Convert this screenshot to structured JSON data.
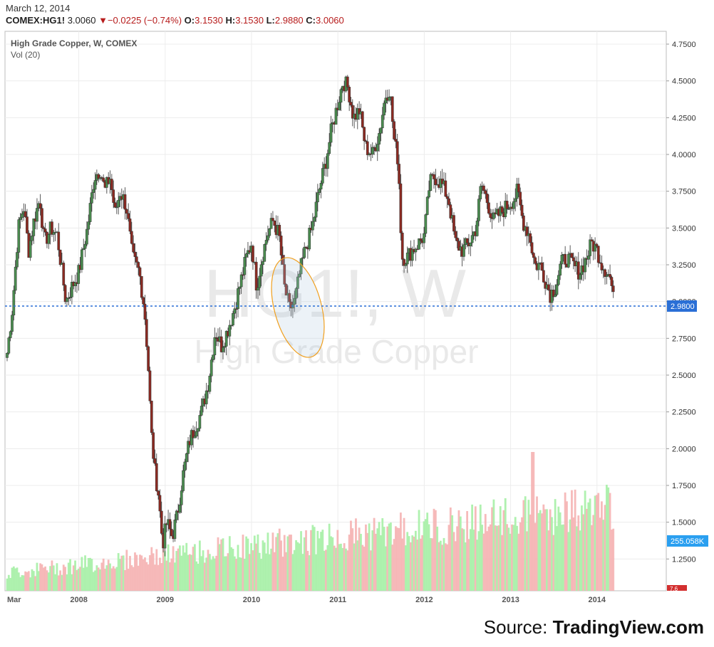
{
  "header": {
    "date": "March 12, 2014",
    "symbol": "COMEX:HG1!",
    "last": "3.0060",
    "change": "−0.0225 (−0.74%)",
    "open_label": "O:",
    "open": "3.1530",
    "high_label": "H:",
    "high": "3.1530",
    "low_label": "L:",
    "low": "2.9880",
    "close_label": "C:",
    "close": "3.0060",
    "down_arrow_icon": "triangle-down-icon"
  },
  "legend": {
    "series_title": "High Grade Copper, W, COMEX",
    "volume_title": "Vol (20)"
  },
  "watermark": {
    "symbol": "HG1!, W",
    "name": "High Grade Copper"
  },
  "markers": {
    "price_line_label": "2.9800",
    "price_line_value": 2.98,
    "volume_label": "255.058K",
    "last_volume_label": "7.6"
  },
  "source": {
    "prefix": "Source: ",
    "brand": "TradingView.com"
  },
  "colors": {
    "up": "#4a8c4f",
    "down": "#8c2a22",
    "vol_up": "#a6f0a6",
    "vol_down": "#f5b3b3",
    "price_line": "#2a6fd6",
    "volume_marker": "#2a9ff0",
    "ellipse": "#f0a020",
    "watermark": "#e7e7e7"
  },
  "chart_data": {
    "type": "candlestick",
    "title": "High Grade Copper, W, COMEX",
    "ylim": [
      1.1,
      4.85
    ],
    "yticks": [
      1.25,
      1.5,
      1.75,
      2.0,
      2.25,
      2.5,
      2.75,
      3.0,
      3.25,
      3.5,
      3.75,
      4.0,
      4.25,
      4.5,
      4.75
    ],
    "ytick_labels": [
      "1.2500",
      "1.5000",
      "1.7500",
      "2.0000",
      "2.2500",
      "2.5000",
      "2.7500",
      "3.0000",
      "3.2500",
      "3.5000",
      "3.7500",
      "4.0000",
      "4.2500",
      "4.5000",
      "4.7500"
    ],
    "x_labels": [
      "Mar",
      "2008",
      "2009",
      "2010",
      "2011",
      "2012",
      "2013",
      "2014"
    ],
    "x_label_dates": [
      2007.17,
      2008.0,
      2009.0,
      2010.0,
      2011.0,
      2012.0,
      2013.0,
      2014.0
    ],
    "x_range": [
      2007.17,
      2014.7
    ],
    "grid": true,
    "close_path": [
      {
        "date": 2007.17,
        "close": 2.65
      },
      {
        "date": 2007.23,
        "close": 2.95
      },
      {
        "date": 2007.3,
        "close": 3.5
      },
      {
        "date": 2007.36,
        "close": 3.65
      },
      {
        "date": 2007.42,
        "close": 3.35
      },
      {
        "date": 2007.48,
        "close": 3.55
      },
      {
        "date": 2007.55,
        "close": 3.7
      },
      {
        "date": 2007.6,
        "close": 3.4
      },
      {
        "date": 2007.68,
        "close": 3.5
      },
      {
        "date": 2007.75,
        "close": 3.45
      },
      {
        "date": 2007.85,
        "close": 3.0
      },
      {
        "date": 2007.92,
        "close": 3.1
      },
      {
        "date": 2008.0,
        "close": 3.2
      },
      {
        "date": 2008.1,
        "close": 3.5
      },
      {
        "date": 2008.18,
        "close": 3.85
      },
      {
        "date": 2008.25,
        "close": 3.9
      },
      {
        "date": 2008.3,
        "close": 3.75
      },
      {
        "date": 2008.36,
        "close": 3.85
      },
      {
        "date": 2008.42,
        "close": 3.6
      },
      {
        "date": 2008.48,
        "close": 3.75
      },
      {
        "date": 2008.55,
        "close": 3.65
      },
      {
        "date": 2008.62,
        "close": 3.3
      },
      {
        "date": 2008.7,
        "close": 3.2
      },
      {
        "date": 2008.76,
        "close": 2.95
      },
      {
        "date": 2008.8,
        "close": 2.6
      },
      {
        "date": 2008.84,
        "close": 2.1
      },
      {
        "date": 2008.88,
        "close": 1.85
      },
      {
        "date": 2008.92,
        "close": 1.7
      },
      {
        "date": 2008.97,
        "close": 1.35
      },
      {
        "date": 2009.02,
        "close": 1.5
      },
      {
        "date": 2009.08,
        "close": 1.4
      },
      {
        "date": 2009.14,
        "close": 1.55
      },
      {
        "date": 2009.2,
        "close": 1.8
      },
      {
        "date": 2009.28,
        "close": 2.05
      },
      {
        "date": 2009.35,
        "close": 2.15
      },
      {
        "date": 2009.42,
        "close": 2.25
      },
      {
        "date": 2009.5,
        "close": 2.45
      },
      {
        "date": 2009.58,
        "close": 2.8
      },
      {
        "date": 2009.65,
        "close": 2.7
      },
      {
        "date": 2009.72,
        "close": 2.8
      },
      {
        "date": 2009.8,
        "close": 2.95
      },
      {
        "date": 2009.88,
        "close": 3.15
      },
      {
        "date": 2009.94,
        "close": 3.3
      },
      {
        "date": 2010.0,
        "close": 3.4
      },
      {
        "date": 2010.06,
        "close": 3.1
      },
      {
        "date": 2010.12,
        "close": 3.3
      },
      {
        "date": 2010.18,
        "close": 3.45
      },
      {
        "date": 2010.25,
        "close": 3.55
      },
      {
        "date": 2010.32,
        "close": 3.45
      },
      {
        "date": 2010.38,
        "close": 3.1
      },
      {
        "date": 2010.44,
        "close": 2.95
      },
      {
        "date": 2010.5,
        "close": 3.0
      },
      {
        "date": 2010.56,
        "close": 3.2
      },
      {
        "date": 2010.62,
        "close": 3.35
      },
      {
        "date": 2010.7,
        "close": 3.5
      },
      {
        "date": 2010.78,
        "close": 3.75
      },
      {
        "date": 2010.86,
        "close": 3.95
      },
      {
        "date": 2010.92,
        "close": 4.15
      },
      {
        "date": 2011.0,
        "close": 4.35
      },
      {
        "date": 2011.06,
        "close": 4.5
      },
      {
        "date": 2011.12,
        "close": 4.45
      },
      {
        "date": 2011.18,
        "close": 4.25
      },
      {
        "date": 2011.25,
        "close": 4.3
      },
      {
        "date": 2011.32,
        "close": 4.05
      },
      {
        "date": 2011.4,
        "close": 4.0
      },
      {
        "date": 2011.48,
        "close": 4.15
      },
      {
        "date": 2011.55,
        "close": 4.4
      },
      {
        "date": 2011.6,
        "close": 4.45
      },
      {
        "date": 2011.65,
        "close": 4.1
      },
      {
        "date": 2011.7,
        "close": 3.95
      },
      {
        "date": 2011.74,
        "close": 3.3
      },
      {
        "date": 2011.8,
        "close": 3.3
      },
      {
        "date": 2011.86,
        "close": 3.35
      },
      {
        "date": 2011.94,
        "close": 3.4
      },
      {
        "date": 2012.0,
        "close": 3.45
      },
      {
        "date": 2012.06,
        "close": 3.8
      },
      {
        "date": 2012.12,
        "close": 3.85
      },
      {
        "date": 2012.2,
        "close": 3.8
      },
      {
        "date": 2012.28,
        "close": 3.7
      },
      {
        "date": 2012.36,
        "close": 3.4
      },
      {
        "date": 2012.44,
        "close": 3.35
      },
      {
        "date": 2012.52,
        "close": 3.4
      },
      {
        "date": 2012.6,
        "close": 3.5
      },
      {
        "date": 2012.66,
        "close": 3.8
      },
      {
        "date": 2012.72,
        "close": 3.7
      },
      {
        "date": 2012.8,
        "close": 3.55
      },
      {
        "date": 2012.88,
        "close": 3.6
      },
      {
        "date": 2012.96,
        "close": 3.65
      },
      {
        "date": 2013.04,
        "close": 3.7
      },
      {
        "date": 2013.08,
        "close": 3.75
      },
      {
        "date": 2013.14,
        "close": 3.55
      },
      {
        "date": 2013.22,
        "close": 3.45
      },
      {
        "date": 2013.28,
        "close": 3.25
      },
      {
        "date": 2013.34,
        "close": 3.25
      },
      {
        "date": 2013.4,
        "close": 3.15
      },
      {
        "date": 2013.46,
        "close": 3.05
      },
      {
        "date": 2013.52,
        "close": 3.1
      },
      {
        "date": 2013.58,
        "close": 3.25
      },
      {
        "date": 2013.64,
        "close": 3.3
      },
      {
        "date": 2013.72,
        "close": 3.25
      },
      {
        "date": 2013.8,
        "close": 3.2
      },
      {
        "date": 2013.88,
        "close": 3.3
      },
      {
        "date": 2013.94,
        "close": 3.4
      },
      {
        "date": 2014.0,
        "close": 3.35
      },
      {
        "date": 2014.06,
        "close": 3.25
      },
      {
        "date": 2014.12,
        "close": 3.2
      },
      {
        "date": 2014.16,
        "close": 3.15
      },
      {
        "date": 2014.19,
        "close": 3.01
      }
    ],
    "volume_bars": {
      "label": "Vol (20)",
      "last_value": "255.058K",
      "peak_value_near": 2.0
    }
  }
}
